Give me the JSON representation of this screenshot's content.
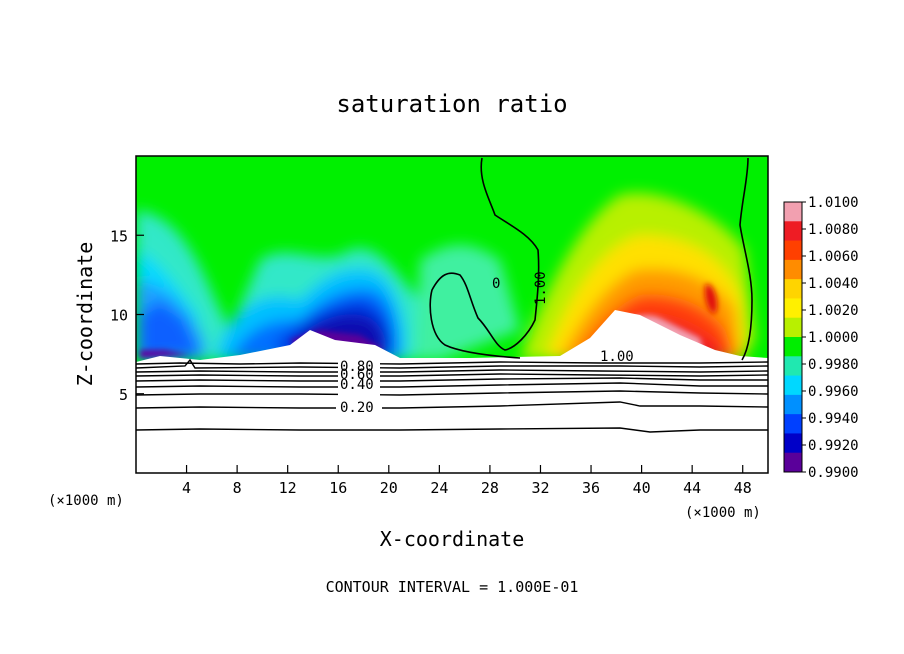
{
  "chart_data": {
    "type": "heatmap",
    "title": "saturation ratio",
    "xlabel": "X-coordinate",
    "ylabel": "Z-coordinate",
    "x_unit_left": "(×1000 m)",
    "x_unit_right": "(×1000 m)",
    "xlim": [
      0,
      50
    ],
    "ylim": [
      0,
      20
    ],
    "x_ticks": [
      4,
      8,
      12,
      16,
      20,
      24,
      28,
      32,
      36,
      40,
      44,
      48
    ],
    "y_ticks": [
      5,
      10,
      15
    ],
    "colorbar": {
      "levels": [
        1.01,
        1.008,
        1.006,
        1.004,
        1.002,
        1.0,
        0.998,
        0.996,
        0.994,
        0.992,
        0.99
      ],
      "labels": [
        "1.0100",
        "1.0080",
        "1.0060",
        "1.0040",
        "1.0020",
        "1.0000",
        "0.9980",
        "0.9960",
        "0.9940",
        "0.9920",
        "0.9900"
      ],
      "colors": [
        "#f2a0b0",
        "#ee1c24",
        "#ff4000",
        "#ff8c00",
        "#ffd400",
        "#fff000",
        "#b8f000",
        "#00ee00",
        "#20e8b0",
        "#00d8ff",
        "#0090ff",
        "#0040ff",
        "#0000c8",
        "#5a009a"
      ]
    },
    "contour_labels": [
      "1.00",
      "0",
      "1.00",
      "0.80",
      "0.60",
      "0.40",
      "0.20"
    ],
    "footer": "CONTOUR INTERVAL = 1.000E-01",
    "grid": false
  }
}
